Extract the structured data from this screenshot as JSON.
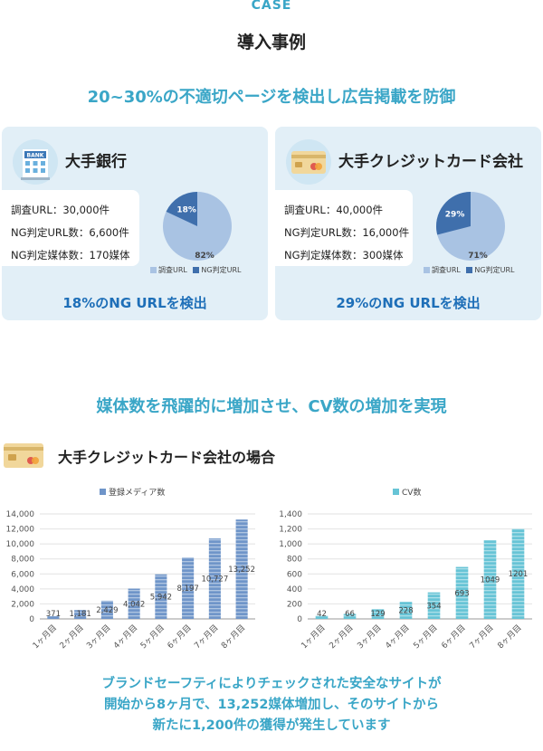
{
  "header": {
    "case_label": "CASE",
    "title": "導入事例",
    "headline1": "20~30%の不適切ページを検出し広告掲載を防御"
  },
  "cards": [
    {
      "title": "大手銀行",
      "icon": "bank-building-icon",
      "bank_sign": "BANK",
      "stats": [
        "調査URL：30,000件",
        "NG判定URL数：6,600件",
        "NG判定媒体数：170媒体"
      ],
      "pie": {
        "ng_percent": 18,
        "survey_percent": 82,
        "ng_label": "18%",
        "survey_label": "82%"
      },
      "legend": [
        "調査URL",
        "NG判定URL"
      ],
      "result": "18%のNG URLを検出"
    },
    {
      "title": "大手クレジットカード会社",
      "icon": "credit-card-icon",
      "stats": [
        "調査URL：40,000件",
        "NG判定URL数：16,000件",
        "NG判定媒体数：300媒体"
      ],
      "pie": {
        "ng_percent": 29,
        "survey_percent": 71,
        "ng_label": "29%",
        "survey_label": "71%"
      },
      "legend": [
        "調査URL",
        "NG判定URL"
      ],
      "result": "29%のNG URLを検出"
    }
  ],
  "section2": {
    "headline": "媒体数を飛躍的に増加させ、CV数の増加を実現",
    "case_title": "大手クレジットカード会社の場合",
    "case_icon": "credit-card-icon"
  },
  "chart_data": [
    {
      "type": "bar",
      "legend": "登録メディア数",
      "categories": [
        "1ヶ月目",
        "2ヶ月目",
        "3ヶ月目",
        "4ヶ月目",
        "5ヶ月目",
        "6ヶ月目",
        "7ヶ月目",
        "8ヶ月目"
      ],
      "values": [
        371,
        1181,
        2429,
        4042,
        5942,
        8197,
        10727,
        13252
      ],
      "value_labels": [
        "371",
        "1,181",
        "2,429",
        "4,042",
        "5,942",
        "8,197",
        "10,727",
        "13,252"
      ],
      "yticks": [
        "0",
        "2,000",
        "4,000",
        "6,000",
        "8,000",
        "10,000",
        "12,000",
        "14,000"
      ],
      "ylim": [
        0,
        14000
      ],
      "color": "#6f95c9"
    },
    {
      "type": "bar",
      "legend": "CV数",
      "categories": [
        "1ヶ月目",
        "2ヶ月目",
        "3ヶ月目",
        "4ヶ月目",
        "5ヶ月目",
        "6ヶ月目",
        "7ヶ月目",
        "8ヶ月目"
      ],
      "values": [
        42,
        66,
        129,
        228,
        354,
        693,
        1049,
        1201
      ],
      "value_labels": [
        "42",
        "66",
        "129",
        "228",
        "354",
        "693",
        "1049",
        "1201"
      ],
      "yticks": [
        "0",
        "200",
        "400",
        "600",
        "800",
        "1,000",
        "1,200",
        "1,400"
      ],
      "ylim": [
        0,
        1400
      ],
      "color": "#67c4d6"
    }
  ],
  "colors": {
    "accent": "#3aa6c7",
    "result_blue": "#1e6fb8",
    "card_bg": "#e2eff7",
    "pie_light": "#a9c3e3",
    "pie_dark": "#3f6fac"
  },
  "footer": {
    "lines": [
      "ブランドセーフティによりチェックされた安全なサイトが",
      "開始から8ヶ月で、13,252媒体増加し、そのサイトから",
      "新たに1,200件の獲得が発生しています"
    ]
  }
}
